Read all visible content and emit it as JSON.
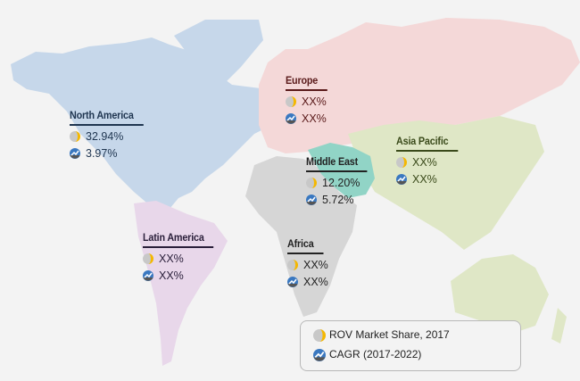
{
  "regions": [
    {
      "name": "North America",
      "share": "32.94%",
      "cagr": "3.97%",
      "color": "#c6d7ea",
      "text_color": "#1f3550"
    },
    {
      "name": "Europe",
      "share": "XX%",
      "cagr": "XX%",
      "color": "#f4d8d8",
      "text_color": "#5a1a1a"
    },
    {
      "name": "Asia Pacific",
      "share": "XX%",
      "cagr": "XX%",
      "color": "#dfe7c6",
      "text_color": "#3a4a1a"
    },
    {
      "name": "Middle East",
      "share": "12.20%",
      "cagr": "5.72%",
      "color": "#91d4c6",
      "text_color": "#222222"
    },
    {
      "name": "Latin America",
      "share": "XX%",
      "cagr": "XX%",
      "color": "#e8d7ea",
      "text_color": "#2a1f3a"
    },
    {
      "name": "Africa",
      "share": "XX%",
      "cagr": "XX%",
      "color": "#d6d6d6",
      "text_color": "#222222"
    }
  ],
  "legend": {
    "share_label": "ROV Market Share,  2017",
    "cagr_label": "CAGR (2017-2022)",
    "share_icon": "pie-icon",
    "cagr_icon": "growth-chart-icon",
    "share_color": "#f5b800",
    "cagr_color": "#3a78c0"
  }
}
